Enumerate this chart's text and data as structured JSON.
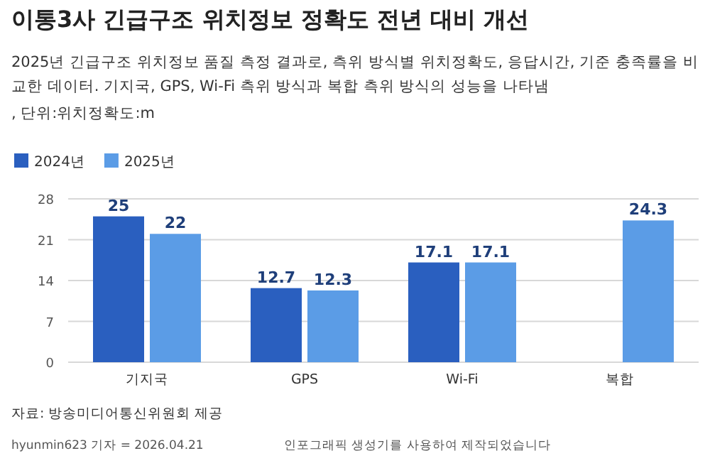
{
  "chart_data": {
    "type": "bar",
    "title": "이통3사 긴급구조 위치정보 정확도 전년 대비 개선",
    "subtitle": "2025년 긴급구조 위치정보 품질 측정 결과로, 측위 방식별 위치정확도, 응답시간, 기준 충족률을 비교한 데이터. 기지국, GPS, Wi-Fi 측위 방식과 복합 측위 방식의 성능을 나타냄",
    "categories": [
      "기지국",
      "GPS",
      "Wi-Fi",
      "복합"
    ],
    "series": [
      {
        "name": "2024년",
        "color": "#2a5fbf",
        "values": [
          25,
          12.7,
          17.1,
          null
        ]
      },
      {
        "name": "2025년",
        "color": "#5b9ce6",
        "values": [
          22,
          12.3,
          17.1,
          24.3
        ]
      }
    ],
    "ylim": [
      0,
      28
    ],
    "yticks": [
      0,
      7,
      14,
      21,
      28
    ],
    "grid": "y",
    "legend": "top left",
    "data_labels": true,
    "annotations": [
      ", 단위:위치정확도:m",
      "자료: 방송미디어통신위원회 제공",
      "hyunmin623 기자 = 2026.04.21",
      "인포그래픽 생성기를 사용하여 제작되었습니다"
    ]
  }
}
